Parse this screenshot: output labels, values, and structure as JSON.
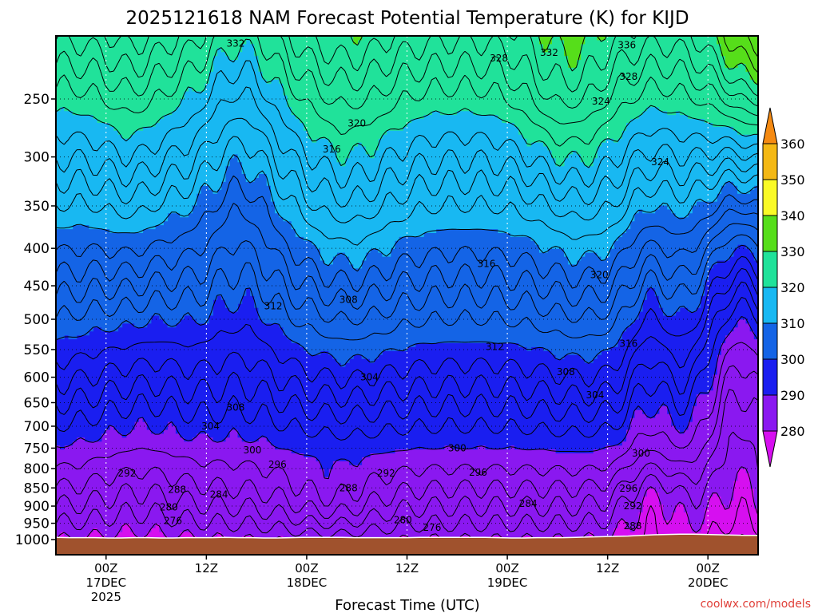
{
  "chart_data": {
    "type": "contour",
    "title": "2025121618 NAM Forecast Potential Temperature (K) for KIJD",
    "xlabel": "Forecast Time (UTC)",
    "ylabel": "",
    "y_ticks": [
      "250",
      "300",
      "350",
      "400",
      "450",
      "500",
      "550",
      "600",
      "650",
      "700",
      "750",
      "800",
      "850",
      "900",
      "950",
      "1000"
    ],
    "y_values": [
      250,
      300,
      350,
      400,
      450,
      500,
      550,
      600,
      650,
      700,
      750,
      800,
      850,
      900,
      950,
      1000
    ],
    "ylim": [
      200,
      1000
    ],
    "y_scale": "log",
    "x_ticks": [
      {
        "hours": 6,
        "label": [
          "00Z",
          "17DEC",
          "2025"
        ]
      },
      {
        "hours": 18,
        "label": [
          "12Z"
        ]
      },
      {
        "hours": 30,
        "label": [
          "00Z",
          "18DEC"
        ]
      },
      {
        "hours": 42,
        "label": [
          "12Z"
        ]
      },
      {
        "hours": 54,
        "label": [
          "00Z",
          "19DEC"
        ]
      },
      {
        "hours": 66,
        "label": [
          "12Z"
        ]
      },
      {
        "hours": 78,
        "label": [
          "00Z",
          "20DEC"
        ]
      }
    ],
    "xlim": [
      0,
      84
    ],
    "grid": true,
    "colorbar": {
      "levels": [
        280,
        290,
        300,
        310,
        320,
        330,
        340,
        350,
        360
      ],
      "labels": [
        "280",
        "290",
        "300",
        "310",
        "320",
        "330",
        "340",
        "350",
        "360"
      ],
      "colors": [
        "#d60ff0",
        "#8a18f0",
        "#1a1ef0",
        "#1464e6",
        "#18b8f2",
        "#20e29a",
        "#56de1a",
        "#fafa26",
        "#f4b814",
        "#f58a12"
      ]
    },
    "contour_labels": [
      {
        "value": "332",
        "h": 21.5,
        "p": 210
      },
      {
        "value": "332",
        "h": 59,
        "p": 216
      },
      {
        "value": "336",
        "h": 68.3,
        "p": 211
      },
      {
        "value": "328",
        "h": 53,
        "p": 220
      },
      {
        "value": "328",
        "h": 68.5,
        "p": 233
      },
      {
        "value": "324",
        "h": 65.2,
        "p": 252
      },
      {
        "value": "320",
        "h": 36,
        "p": 270
      },
      {
        "value": "316",
        "h": 33,
        "p": 293
      },
      {
        "value": "324",
        "h": 72.3,
        "p": 305
      },
      {
        "value": "316",
        "h": 51.5,
        "p": 420
      },
      {
        "value": "320",
        "h": 65,
        "p": 435
      },
      {
        "value": "312",
        "h": 26,
        "p": 480
      },
      {
        "value": "308",
        "h": 35,
        "p": 470
      },
      {
        "value": "312",
        "h": 52.5,
        "p": 545
      },
      {
        "value": "316",
        "h": 68.5,
        "p": 540
      },
      {
        "value": "308",
        "h": 61,
        "p": 590
      },
      {
        "value": "304",
        "h": 37.5,
        "p": 600
      },
      {
        "value": "304",
        "h": 64.5,
        "p": 635
      },
      {
        "value": "308",
        "h": 21.5,
        "p": 660
      },
      {
        "value": "304",
        "h": 18.5,
        "p": 700
      },
      {
        "value": "300",
        "h": 23.5,
        "p": 755
      },
      {
        "value": "300",
        "h": 48,
        "p": 750
      },
      {
        "value": "300",
        "h": 70,
        "p": 762
      },
      {
        "value": "296",
        "h": 26.5,
        "p": 790
      },
      {
        "value": "292",
        "h": 8.5,
        "p": 812
      },
      {
        "value": "292",
        "h": 39.5,
        "p": 812
      },
      {
        "value": "296",
        "h": 50.5,
        "p": 810
      },
      {
        "value": "288",
        "h": 14.5,
        "p": 855
      },
      {
        "value": "284",
        "h": 19.5,
        "p": 868
      },
      {
        "value": "288",
        "h": 35,
        "p": 850
      },
      {
        "value": "284",
        "h": 56.5,
        "p": 893
      },
      {
        "value": "296",
        "h": 68.5,
        "p": 852
      },
      {
        "value": "292",
        "h": 69,
        "p": 900
      },
      {
        "value": "280",
        "h": 13.5,
        "p": 903
      },
      {
        "value": "276",
        "h": 14,
        "p": 943
      },
      {
        "value": "280",
        "h": 41.5,
        "p": 940
      },
      {
        "value": "276",
        "h": 45,
        "p": 963
      },
      {
        "value": "288",
        "h": 69,
        "p": 958
      }
    ],
    "surface_pressure": [
      993,
      994,
      994,
      994,
      995,
      995,
      994,
      994,
      995,
      995,
      994,
      994,
      994,
      993,
      994,
      994,
      995,
      995,
      994,
      993,
      993,
      993,
      993,
      994,
      994,
      994,
      994,
      994,
      993,
      993,
      993,
      993,
      993,
      993,
      994,
      995,
      995,
      994,
      994,
      994,
      993,
      992,
      991,
      990,
      989,
      987,
      985,
      984,
      983,
      983,
      984,
      985,
      986,
      987,
      987
    ]
  },
  "credit": "coolwx.com/models"
}
